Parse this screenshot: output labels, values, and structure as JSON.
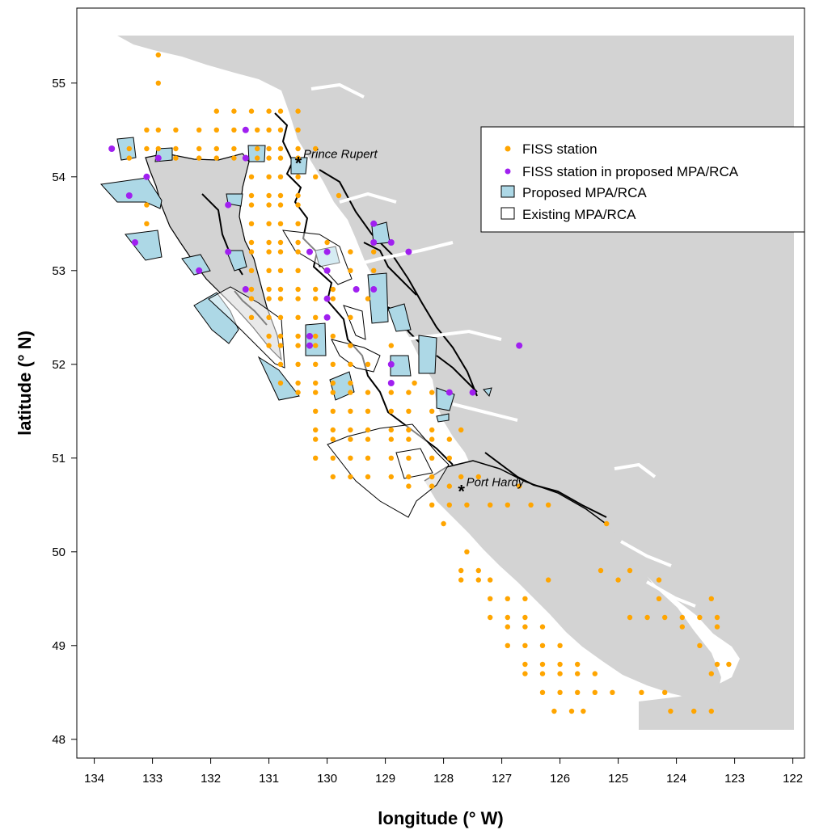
{
  "chart_data": {
    "type": "scatter",
    "xlabel": "longitude (° W)",
    "ylabel": "latitude (° N)",
    "xlim": [
      134.3,
      121.8
    ],
    "ylim": [
      47.8,
      55.8
    ],
    "x_ticks": [
      "134",
      "133",
      "132",
      "131",
      "130",
      "129",
      "128",
      "127",
      "126",
      "125",
      "124",
      "123",
      "122"
    ],
    "y_ticks": [
      "48",
      "49",
      "50",
      "51",
      "52",
      "53",
      "54",
      "55"
    ],
    "grid": false,
    "legend_position": "top-right",
    "legend": [
      {
        "label": "FISS station",
        "symbol": "point",
        "color": "#FFA500"
      },
      {
        "label": "FISS station in proposed MPA/RCA",
        "symbol": "point",
        "color": "#A020F0"
      },
      {
        "label": "Proposed MPA/RCA",
        "symbol": "box",
        "color": "#ADD8E6"
      },
      {
        "label": "Existing MPA/RCA",
        "symbol": "box",
        "color": "#FFFFFF"
      }
    ],
    "annotations": [
      {
        "text": "Prince Rupert",
        "lon": 130.3,
        "lat": 54.2
      },
      {
        "text": "Port Hardy",
        "lon": 127.5,
        "lat": 50.7
      }
    ],
    "colors": {
      "land": "#D3D3D3",
      "coastline": "#000000",
      "fiss": "#FFA500",
      "fiss_in_mpa": "#A020F0",
      "proposed": "#ADD8E6"
    },
    "series": [
      {
        "name": "FISS station",
        "points": [
          [
            132.9,
            55.3
          ],
          [
            132.9,
            55.0
          ],
          [
            133.1,
            54.5
          ],
          [
            132.9,
            54.5
          ],
          [
            132.6,
            54.5
          ],
          [
            132.2,
            54.5
          ],
          [
            131.9,
            54.5
          ],
          [
            131.6,
            54.5
          ],
          [
            133.4,
            54.3
          ],
          [
            133.1,
            54.3
          ],
          [
            132.9,
            54.3
          ],
          [
            132.6,
            54.3
          ],
          [
            132.2,
            54.3
          ],
          [
            131.9,
            54.3
          ],
          [
            131.6,
            54.3
          ],
          [
            133.4,
            54.2
          ],
          [
            132.9,
            54.2
          ],
          [
            132.6,
            54.2
          ],
          [
            132.2,
            54.2
          ],
          [
            131.9,
            54.2
          ],
          [
            131.6,
            54.2
          ],
          [
            131.9,
            54.7
          ],
          [
            131.6,
            54.7
          ],
          [
            131.3,
            54.7
          ],
          [
            131.0,
            54.7
          ],
          [
            130.8,
            54.7
          ],
          [
            130.5,
            54.7
          ],
          [
            131.2,
            54.5
          ],
          [
            131.0,
            54.5
          ],
          [
            130.8,
            54.5
          ],
          [
            130.5,
            54.5
          ],
          [
            131.2,
            54.3
          ],
          [
            131.0,
            54.3
          ],
          [
            130.8,
            54.3
          ],
          [
            130.5,
            54.3
          ],
          [
            130.2,
            54.3
          ],
          [
            131.2,
            54.2
          ],
          [
            131.0,
            54.2
          ],
          [
            130.8,
            54.2
          ],
          [
            130.5,
            54.2
          ],
          [
            131.0,
            54.0
          ],
          [
            130.8,
            54.0
          ],
          [
            130.5,
            54.0
          ],
          [
            130.2,
            54.0
          ],
          [
            131.3,
            54.0
          ],
          [
            131.0,
            53.8
          ],
          [
            130.8,
            53.8
          ],
          [
            130.5,
            53.8
          ],
          [
            131.3,
            53.8
          ],
          [
            129.8,
            53.8
          ],
          [
            131.0,
            53.7
          ],
          [
            130.8,
            53.7
          ],
          [
            130.5,
            53.7
          ],
          [
            131.3,
            53.7
          ],
          [
            133.1,
            53.7
          ],
          [
            131.0,
            53.5
          ],
          [
            130.8,
            53.5
          ],
          [
            130.5,
            53.5
          ],
          [
            131.3,
            53.5
          ],
          [
            133.1,
            53.5
          ],
          [
            131.0,
            53.3
          ],
          [
            130.8,
            53.3
          ],
          [
            130.5,
            53.3
          ],
          [
            131.3,
            53.3
          ],
          [
            130.0,
            53.3
          ],
          [
            131.0,
            53.2
          ],
          [
            130.8,
            53.2
          ],
          [
            130.5,
            53.2
          ],
          [
            131.3,
            53.2
          ],
          [
            129.6,
            53.2
          ],
          [
            129.2,
            53.2
          ],
          [
            131.0,
            53.0
          ],
          [
            130.8,
            53.0
          ],
          [
            130.5,
            53.0
          ],
          [
            131.3,
            53.0
          ],
          [
            129.6,
            53.0
          ],
          [
            129.2,
            53.0
          ],
          [
            131.0,
            52.8
          ],
          [
            130.8,
            52.8
          ],
          [
            130.5,
            52.8
          ],
          [
            131.3,
            52.8
          ],
          [
            130.2,
            52.8
          ],
          [
            129.9,
            52.8
          ],
          [
            131.0,
            52.7
          ],
          [
            130.8,
            52.7
          ],
          [
            130.5,
            52.7
          ],
          [
            131.3,
            52.7
          ],
          [
            130.2,
            52.7
          ],
          [
            129.9,
            52.7
          ],
          [
            129.3,
            52.7
          ],
          [
            131.0,
            52.5
          ],
          [
            130.8,
            52.5
          ],
          [
            130.5,
            52.5
          ],
          [
            131.3,
            52.5
          ],
          [
            130.2,
            52.5
          ],
          [
            129.6,
            52.5
          ],
          [
            131.0,
            52.3
          ],
          [
            130.8,
            52.3
          ],
          [
            130.5,
            52.3
          ],
          [
            130.2,
            52.3
          ],
          [
            129.9,
            52.3
          ],
          [
            131.0,
            52.2
          ],
          [
            130.8,
            52.2
          ],
          [
            130.5,
            52.2
          ],
          [
            130.2,
            52.2
          ],
          [
            129.6,
            52.2
          ],
          [
            128.9,
            52.2
          ],
          [
            130.8,
            52.0
          ],
          [
            130.5,
            52.0
          ],
          [
            130.2,
            52.0
          ],
          [
            129.9,
            52.0
          ],
          [
            129.6,
            52.0
          ],
          [
            129.3,
            52.0
          ],
          [
            130.8,
            51.8
          ],
          [
            130.5,
            51.8
          ],
          [
            130.2,
            51.8
          ],
          [
            129.9,
            51.8
          ],
          [
            129.6,
            51.8
          ],
          [
            128.5,
            51.8
          ],
          [
            130.5,
            51.7
          ],
          [
            130.2,
            51.7
          ],
          [
            129.9,
            51.7
          ],
          [
            129.6,
            51.7
          ],
          [
            129.3,
            51.7
          ],
          [
            128.9,
            51.7
          ],
          [
            128.6,
            51.7
          ],
          [
            128.2,
            51.7
          ],
          [
            130.2,
            51.5
          ],
          [
            129.9,
            51.5
          ],
          [
            129.6,
            51.5
          ],
          [
            129.3,
            51.5
          ],
          [
            128.9,
            51.5
          ],
          [
            128.6,
            51.5
          ],
          [
            128.2,
            51.5
          ],
          [
            130.2,
            51.3
          ],
          [
            129.9,
            51.3
          ],
          [
            129.6,
            51.3
          ],
          [
            129.3,
            51.3
          ],
          [
            128.9,
            51.3
          ],
          [
            128.6,
            51.3
          ],
          [
            128.2,
            51.3
          ],
          [
            127.7,
            51.3
          ],
          [
            130.2,
            51.2
          ],
          [
            129.9,
            51.2
          ],
          [
            129.6,
            51.2
          ],
          [
            129.3,
            51.2
          ],
          [
            128.9,
            51.2
          ],
          [
            128.6,
            51.2
          ],
          [
            128.2,
            51.2
          ],
          [
            127.9,
            51.2
          ],
          [
            130.2,
            51.0
          ],
          [
            129.9,
            51.0
          ],
          [
            129.6,
            51.0
          ],
          [
            129.3,
            51.0
          ],
          [
            128.9,
            51.0
          ],
          [
            128.6,
            51.0
          ],
          [
            128.2,
            51.0
          ],
          [
            127.9,
            51.0
          ],
          [
            129.9,
            50.8
          ],
          [
            129.6,
            50.8
          ],
          [
            129.3,
            50.8
          ],
          [
            128.9,
            50.8
          ],
          [
            128.6,
            50.8
          ],
          [
            128.2,
            50.8
          ],
          [
            127.7,
            50.8
          ],
          [
            127.4,
            50.8
          ],
          [
            128.6,
            50.7
          ],
          [
            128.2,
            50.7
          ],
          [
            127.9,
            50.7
          ],
          [
            126.7,
            50.7
          ],
          [
            128.2,
            50.5
          ],
          [
            127.9,
            50.5
          ],
          [
            127.6,
            50.5
          ],
          [
            127.2,
            50.5
          ],
          [
            126.9,
            50.5
          ],
          [
            126.5,
            50.5
          ],
          [
            126.2,
            50.5
          ],
          [
            128.0,
            50.3
          ],
          [
            125.2,
            50.3
          ],
          [
            127.6,
            50.0
          ],
          [
            127.7,
            49.8
          ],
          [
            127.4,
            49.8
          ],
          [
            125.3,
            49.8
          ],
          [
            124.8,
            49.8
          ],
          [
            127.7,
            49.7
          ],
          [
            127.4,
            49.7
          ],
          [
            127.2,
            49.7
          ],
          [
            126.2,
            49.7
          ],
          [
            125.0,
            49.7
          ],
          [
            124.3,
            49.7
          ],
          [
            127.2,
            49.5
          ],
          [
            126.9,
            49.5
          ],
          [
            126.6,
            49.5
          ],
          [
            124.3,
            49.5
          ],
          [
            123.4,
            49.5
          ],
          [
            127.2,
            49.3
          ],
          [
            126.9,
            49.3
          ],
          [
            126.6,
            49.3
          ],
          [
            124.8,
            49.3
          ],
          [
            124.5,
            49.3
          ],
          [
            124.2,
            49.3
          ],
          [
            123.9,
            49.3
          ],
          [
            123.6,
            49.3
          ],
          [
            123.3,
            49.3
          ],
          [
            126.9,
            49.2
          ],
          [
            126.6,
            49.2
          ],
          [
            126.3,
            49.2
          ],
          [
            123.9,
            49.2
          ],
          [
            123.3,
            49.2
          ],
          [
            126.9,
            49.0
          ],
          [
            126.6,
            49.0
          ],
          [
            126.3,
            49.0
          ],
          [
            126.0,
            49.0
          ],
          [
            123.6,
            49.0
          ],
          [
            126.6,
            48.8
          ],
          [
            126.3,
            48.8
          ],
          [
            126.0,
            48.8
          ],
          [
            125.7,
            48.8
          ],
          [
            123.3,
            48.8
          ],
          [
            123.1,
            48.8
          ],
          [
            126.6,
            48.7
          ],
          [
            126.3,
            48.7
          ],
          [
            126.0,
            48.7
          ],
          [
            125.7,
            48.7
          ],
          [
            125.4,
            48.7
          ],
          [
            123.4,
            48.7
          ],
          [
            126.3,
            48.5
          ],
          [
            126.0,
            48.5
          ],
          [
            125.7,
            48.5
          ],
          [
            125.4,
            48.5
          ],
          [
            125.1,
            48.5
          ],
          [
            124.6,
            48.5
          ],
          [
            124.2,
            48.5
          ],
          [
            126.1,
            48.3
          ],
          [
            125.8,
            48.3
          ],
          [
            125.6,
            48.3
          ],
          [
            123.7,
            48.3
          ],
          [
            123.4,
            48.3
          ],
          [
            124.1,
            48.3
          ]
        ]
      },
      {
        "name": "FISS station in proposed MPA/RCA",
        "points": [
          [
            133.7,
            54.3
          ],
          [
            133.1,
            54.0
          ],
          [
            133.4,
            53.8
          ],
          [
            132.9,
            54.2
          ],
          [
            131.4,
            54.5
          ],
          [
            131.4,
            54.2
          ],
          [
            131.7,
            53.7
          ],
          [
            133.3,
            53.3
          ],
          [
            132.2,
            53.0
          ],
          [
            131.7,
            53.2
          ],
          [
            131.4,
            52.8
          ],
          [
            130.3,
            53.2
          ],
          [
            130.0,
            53.2
          ],
          [
            130.0,
            53.0
          ],
          [
            130.0,
            52.7
          ],
          [
            130.0,
            52.5
          ],
          [
            130.3,
            52.3
          ],
          [
            130.3,
            52.2
          ],
          [
            129.5,
            52.8
          ],
          [
            129.2,
            52.8
          ],
          [
            129.2,
            53.3
          ],
          [
            128.9,
            53.3
          ],
          [
            128.6,
            53.2
          ],
          [
            129.2,
            53.5
          ],
          [
            128.9,
            52.0
          ],
          [
            128.9,
            51.8
          ],
          [
            127.9,
            51.7
          ],
          [
            127.5,
            51.7
          ],
          [
            126.7,
            52.2
          ]
        ]
      }
    ]
  }
}
